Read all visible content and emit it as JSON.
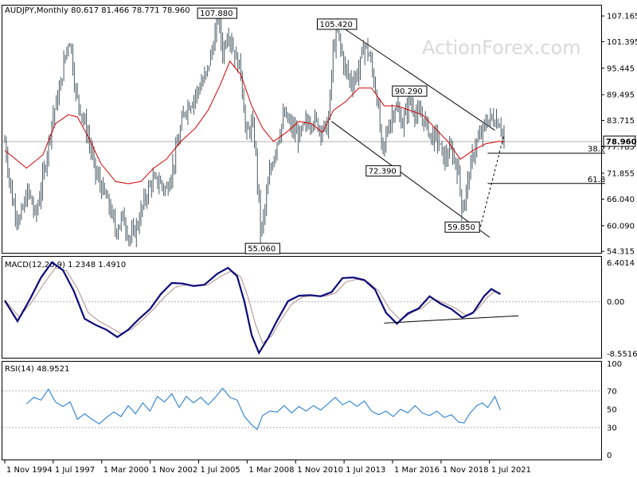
{
  "chart_data": {
    "type": "ohlc",
    "header": "AUDJPY,Monthly  80.617 81.466 78.771 78.960",
    "watermark": "ActionForex.com",
    "last_price": "78.960",
    "x_ticks": [
      "1 Nov 1994",
      "1 Jul 1997",
      "1 Mar 2000",
      "1 Nov 2002",
      "1 Jul 2005",
      "1 Mar 2008",
      "1 Nov 2010",
      "1 Jul 2013",
      "1 Mar 2016",
      "1 Nov 2018",
      "1 Jul 2021"
    ],
    "price_panel": {
      "y_ticks": [
        "107.165",
        "101.395",
        "95.445",
        "89.495",
        "83.715",
        "77.785",
        "71.855",
        "66.040",
        "60.090",
        "54.315"
      ],
      "ylim": [
        54.0,
        109.5
      ],
      "swing_labels": [
        {
          "text": "107.880",
          "t": 11.7,
          "v": 107.88
        },
        {
          "text": "55.060",
          "t": 14.2,
          "v": 55.06
        },
        {
          "text": "105.420",
          "t": 18.3,
          "v": 105.42
        },
        {
          "text": "72.390",
          "t": 20.85,
          "v": 72.39
        },
        {
          "text": "90.290",
          "t": 22.3,
          "v": 90.29
        },
        {
          "text": "59.850",
          "t": 25.2,
          "v": 59.85
        }
      ],
      "fib_levels": [
        {
          "text": "38.2",
          "v": 76.36
        },
        {
          "text": "61.8",
          "v": 69.57
        }
      ],
      "series_points": [
        [
          0,
          79
        ],
        [
          0.4,
          66
        ],
        [
          0.8,
          61
        ],
        [
          1.3,
          68
        ],
        [
          1.7,
          62
        ],
        [
          2.2,
          73
        ],
        [
          2.6,
          84
        ],
        [
          3.0,
          90
        ],
        [
          3.4,
          100
        ],
        [
          3.6,
          102
        ],
        [
          3.9,
          90
        ],
        [
          4.2,
          86
        ],
        [
          4.6,
          80
        ],
        [
          5.0,
          72
        ],
        [
          5.4,
          68
        ],
        [
          5.8,
          64
        ],
        [
          6.1,
          59
        ],
        [
          6.5,
          62
        ],
        [
          6.9,
          57
        ],
        [
          7.3,
          60
        ],
        [
          7.7,
          66
        ],
        [
          8.1,
          70
        ],
        [
          8.5,
          70
        ],
        [
          8.9,
          68
        ],
        [
          9.3,
          74
        ],
        [
          9.6,
          80
        ],
        [
          9.9,
          86
        ],
        [
          10.3,
          88
        ],
        [
          10.7,
          91
        ],
        [
          11.1,
          94
        ],
        [
          11.5,
          101
        ],
        [
          11.75,
          107
        ],
        [
          12.0,
          99
        ],
        [
          12.3,
          104
        ],
        [
          12.7,
          98
        ],
        [
          13.0,
          95
        ],
        [
          13.3,
          80
        ],
        [
          13.6,
          83
        ],
        [
          13.8,
          78
        ],
        [
          14.1,
          58
        ],
        [
          14.3,
          63
        ],
        [
          14.6,
          72
        ],
        [
          15.0,
          79
        ],
        [
          15.4,
          85
        ],
        [
          15.8,
          82
        ],
        [
          16.2,
          80
        ],
        [
          16.6,
          83
        ],
        [
          17.0,
          84
        ],
        [
          17.4,
          82
        ],
        [
          17.8,
          82
        ],
        [
          18.1,
          100
        ],
        [
          18.3,
          104
        ],
        [
          18.7,
          96
        ],
        [
          19.1,
          92
        ],
        [
          19.5,
          95
        ],
        [
          19.8,
          101
        ],
        [
          20.1,
          98
        ],
        [
          20.5,
          89
        ],
        [
          20.8,
          76
        ],
        [
          21.1,
          82
        ],
        [
          21.5,
          87
        ],
        [
          21.9,
          83
        ],
        [
          22.3,
          88
        ],
        [
          22.7,
          85
        ],
        [
          23.1,
          84
        ],
        [
          23.5,
          80
        ],
        [
          23.8,
          80
        ],
        [
          24.2,
          75
        ],
        [
          24.6,
          77
        ],
        [
          25.0,
          72
        ],
        [
          25.2,
          63
        ],
        [
          25.5,
          70
        ],
        [
          25.9,
          78
        ],
        [
          26.2,
          80
        ],
        [
          26.6,
          84
        ],
        [
          27.0,
          84
        ],
        [
          27.3,
          83
        ],
        [
          27.5,
          79
        ]
      ],
      "ma_points": [
        [
          0,
          77
        ],
        [
          1.2,
          73
        ],
        [
          2.1,
          76
        ],
        [
          2.8,
          83
        ],
        [
          3.5,
          85
        ],
        [
          4.0,
          84.5
        ],
        [
          4.6,
          80
        ],
        [
          5.3,
          74
        ],
        [
          6.1,
          70
        ],
        [
          6.8,
          69.5
        ],
        [
          7.5,
          70
        ],
        [
          8.2,
          73
        ],
        [
          8.9,
          75
        ],
        [
          9.7,
          79
        ],
        [
          10.5,
          82
        ],
        [
          11.2,
          86
        ],
        [
          11.9,
          92
        ],
        [
          12.4,
          97
        ],
        [
          13.0,
          94
        ],
        [
          13.6,
          87
        ],
        [
          14.2,
          82
        ],
        [
          14.8,
          79
        ],
        [
          15.5,
          81
        ],
        [
          16.2,
          83.5
        ],
        [
          16.9,
          83
        ],
        [
          17.5,
          81
        ],
        [
          18.1,
          86
        ],
        [
          18.8,
          88
        ],
        [
          19.5,
          91
        ],
        [
          20.2,
          91
        ],
        [
          20.9,
          87
        ],
        [
          21.6,
          87
        ],
        [
          22.3,
          86
        ],
        [
          23.0,
          85
        ],
        [
          23.7,
          82
        ],
        [
          24.4,
          79
        ],
        [
          25.1,
          75
        ],
        [
          25.8,
          77
        ],
        [
          26.5,
          78.5
        ],
        [
          27.2,
          79
        ],
        [
          27.5,
          79
        ]
      ]
    },
    "macd_panel": {
      "label": "MACD(12,26,9) 1.2348 1.4910",
      "y_ticks": [
        "6.4014",
        "0.00",
        "-8.5516"
      ],
      "ylim": [
        -9.2,
        7.4
      ],
      "macd_points": [
        [
          0,
          0.2
        ],
        [
          0.7,
          -3.2
        ],
        [
          1.4,
          0.5
        ],
        [
          2.0,
          4.0
        ],
        [
          2.6,
          6.5
        ],
        [
          3.2,
          5.2
        ],
        [
          3.8,
          1.8
        ],
        [
          4.4,
          -2.8
        ],
        [
          5.0,
          -3.8
        ],
        [
          5.6,
          -4.6
        ],
        [
          6.2,
          -5.8
        ],
        [
          6.8,
          -4.6
        ],
        [
          7.4,
          -2.8
        ],
        [
          8.0,
          -1.2
        ],
        [
          8.6,
          1.3
        ],
        [
          9.2,
          3.1
        ],
        [
          9.8,
          3.0
        ],
        [
          10.4,
          2.6
        ],
        [
          11.0,
          2.8
        ],
        [
          11.7,
          4.6
        ],
        [
          12.3,
          5.6
        ],
        [
          12.8,
          4.2
        ],
        [
          13.2,
          0.0
        ],
        [
          13.6,
          -5.5
        ],
        [
          14.0,
          -8.4
        ],
        [
          14.5,
          -6.0
        ],
        [
          15.0,
          -3.1
        ],
        [
          15.6,
          0.1
        ],
        [
          16.2,
          1.0
        ],
        [
          16.8,
          1.1
        ],
        [
          17.4,
          0.9
        ],
        [
          18.0,
          1.6
        ],
        [
          18.6,
          3.9
        ],
        [
          19.2,
          4.0
        ],
        [
          19.8,
          3.6
        ],
        [
          20.4,
          2.0
        ],
        [
          21.0,
          -1.8
        ],
        [
          21.6,
          -3.6
        ],
        [
          22.2,
          -1.9
        ],
        [
          22.8,
          -1.1
        ],
        [
          23.4,
          0.9
        ],
        [
          24.0,
          -0.3
        ],
        [
          24.6,
          -1.2
        ],
        [
          25.2,
          -2.6
        ],
        [
          25.8,
          -1.8
        ],
        [
          26.4,
          0.9
        ],
        [
          26.8,
          2.1
        ],
        [
          27.3,
          1.24
        ]
      ],
      "signal_points": [
        [
          0,
          0.3
        ],
        [
          0.8,
          -2.5
        ],
        [
          1.5,
          0.0
        ],
        [
          2.2,
          3.2
        ],
        [
          2.8,
          5.6
        ],
        [
          3.4,
          5.1
        ],
        [
          4.0,
          2.2
        ],
        [
          4.6,
          -1.8
        ],
        [
          5.2,
          -3.2
        ],
        [
          5.8,
          -4.2
        ],
        [
          6.4,
          -5.2
        ],
        [
          7.0,
          -4.5
        ],
        [
          7.6,
          -2.9
        ],
        [
          8.2,
          -1.2
        ],
        [
          8.8,
          0.8
        ],
        [
          9.4,
          2.4
        ],
        [
          10.0,
          2.8
        ],
        [
          10.6,
          2.6
        ],
        [
          11.2,
          2.8
        ],
        [
          11.9,
          4.2
        ],
        [
          12.5,
          5.1
        ],
        [
          13.0,
          4.1
        ],
        [
          13.4,
          0.8
        ],
        [
          13.8,
          -3.6
        ],
        [
          14.2,
          -6.8
        ],
        [
          14.7,
          -5.6
        ],
        [
          15.2,
          -3.0
        ],
        [
          15.8,
          -0.4
        ],
        [
          16.4,
          0.8
        ],
        [
          17.0,
          1.0
        ],
        [
          17.6,
          0.9
        ],
        [
          18.2,
          1.4
        ],
        [
          18.8,
          3.3
        ],
        [
          19.4,
          3.7
        ],
        [
          20.0,
          3.3
        ],
        [
          20.6,
          1.8
        ],
        [
          21.2,
          -1.2
        ],
        [
          21.8,
          -3.0
        ],
        [
          22.4,
          -1.8
        ],
        [
          23.0,
          -1.0
        ],
        [
          23.6,
          0.5
        ],
        [
          24.2,
          -0.2
        ],
        [
          24.8,
          -1.0
        ],
        [
          25.4,
          -2.2
        ],
        [
          26.0,
          -1.4
        ],
        [
          26.6,
          0.8
        ],
        [
          27.0,
          1.7
        ],
        [
          27.3,
          1.49
        ]
      ],
      "trendline": [
        [
          20.9,
          -3.5
        ],
        [
          28.3,
          -2.3
        ]
      ]
    },
    "rsi_panel": {
      "label": "RSI(14) 48.9521",
      "y_ticks": [
        "100",
        "70",
        "50",
        "30",
        "0"
      ],
      "ylim": [
        -5,
        102
      ],
      "levels": [
        70,
        30
      ],
      "rsi_points": [
        [
          1.2,
          56
        ],
        [
          1.6,
          63
        ],
        [
          2.0,
          60
        ],
        [
          2.4,
          72
        ],
        [
          2.8,
          58
        ],
        [
          3.2,
          53
        ],
        [
          3.6,
          58
        ],
        [
          4.0,
          39
        ],
        [
          4.4,
          45
        ],
        [
          4.8,
          39
        ],
        [
          5.2,
          34
        ],
        [
          5.6,
          41
        ],
        [
          6.0,
          47
        ],
        [
          6.4,
          42
        ],
        [
          6.8,
          54
        ],
        [
          7.2,
          45
        ],
        [
          7.6,
          57
        ],
        [
          8.0,
          48
        ],
        [
          8.4,
          64
        ],
        [
          8.8,
          58
        ],
        [
          9.2,
          67
        ],
        [
          9.6,
          52
        ],
        [
          10.0,
          64
        ],
        [
          10.4,
          57
        ],
        [
          10.8,
          63
        ],
        [
          11.2,
          55
        ],
        [
          11.6,
          63
        ],
        [
          12.0,
          73
        ],
        [
          12.4,
          63
        ],
        [
          12.8,
          60
        ],
        [
          13.2,
          42
        ],
        [
          13.6,
          33
        ],
        [
          13.9,
          28
        ],
        [
          14.2,
          43
        ],
        [
          14.6,
          48
        ],
        [
          15.0,
          47
        ],
        [
          15.4,
          54
        ],
        [
          15.8,
          46
        ],
        [
          16.2,
          53
        ],
        [
          16.6,
          48
        ],
        [
          17.0,
          54
        ],
        [
          17.4,
          49
        ],
        [
          17.8,
          56
        ],
        [
          18.2,
          63
        ],
        [
          18.6,
          55
        ],
        [
          19.0,
          59
        ],
        [
          19.4,
          53
        ],
        [
          19.8,
          59
        ],
        [
          20.2,
          48
        ],
        [
          20.6,
          44
        ],
        [
          21.0,
          48
        ],
        [
          21.4,
          42
        ],
        [
          21.8,
          50
        ],
        [
          22.2,
          46
        ],
        [
          22.6,
          54
        ],
        [
          23.0,
          46
        ],
        [
          23.4,
          43
        ],
        [
          23.8,
          48
        ],
        [
          24.2,
          41
        ],
        [
          24.6,
          44
        ],
        [
          25.0,
          36
        ],
        [
          25.3,
          35
        ],
        [
          25.6,
          45
        ],
        [
          26.0,
          54
        ],
        [
          26.3,
          57
        ],
        [
          26.6,
          52
        ],
        [
          27.0,
          64
        ],
        [
          27.3,
          49
        ]
      ]
    }
  }
}
